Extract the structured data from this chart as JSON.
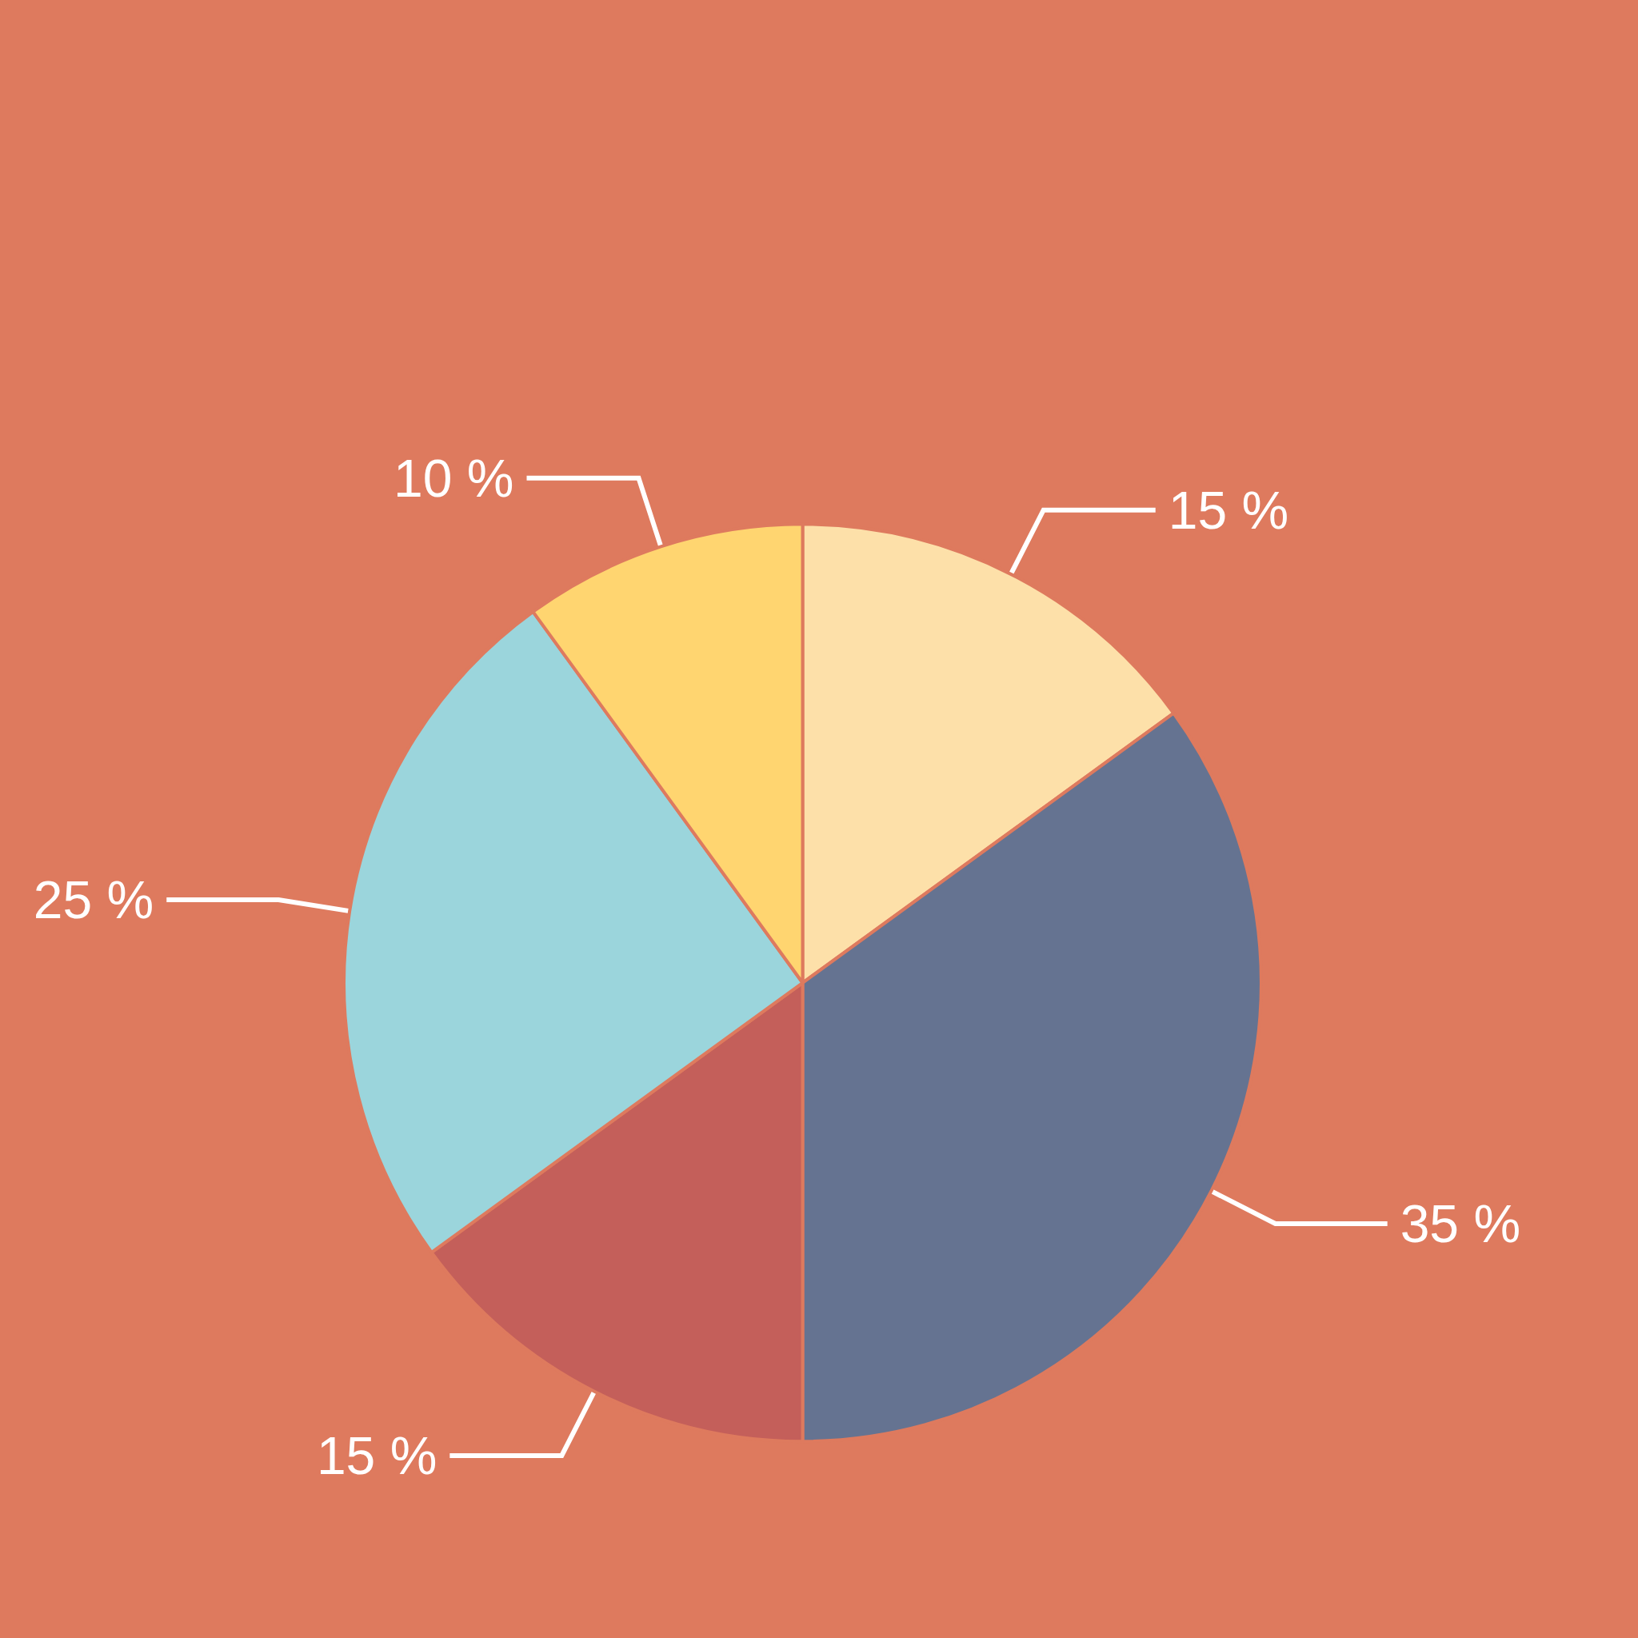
{
  "chart_data": {
    "type": "pie",
    "categories": [
      null,
      null,
      null,
      null,
      null
    ],
    "values": [
      15,
      35,
      15,
      25,
      10
    ],
    "colors": [
      "#fde0a9",
      "#657391",
      "#c45f5a",
      "#9bd5dc",
      "#ffd570"
    ],
    "value_labels": [
      "15 %",
      "35 %",
      "15 %",
      "25 %",
      "10 %"
    ]
  }
}
